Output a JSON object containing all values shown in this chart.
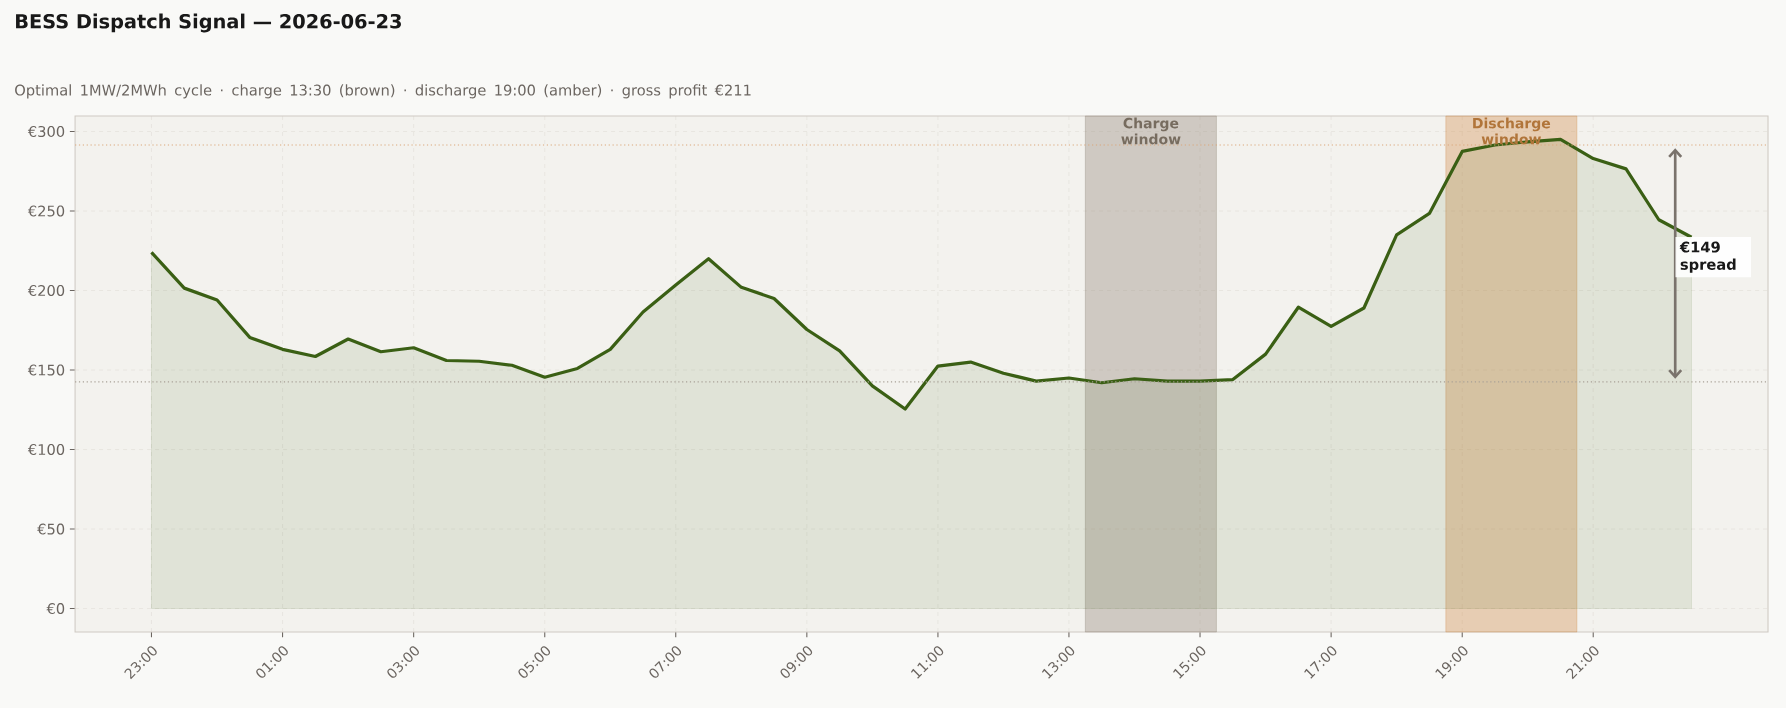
{
  "chart_data": {
    "type": "area",
    "title": "BESS Dispatch Signal — 2026-06-23",
    "subtitle": "Optimal 1MW/2MWh cycle  ·  charge 13:30 (brown)  ·  discharge 19:00 (amber)  ·  gross profit €211",
    "x": [
      "2026-06-22T23:00",
      "2026-06-22T23:30",
      "2026-06-23T00:00",
      "2026-06-23T00:30",
      "2026-06-23T01:00",
      "2026-06-23T01:30",
      "2026-06-23T02:00",
      "2026-06-23T02:30",
      "2026-06-23T03:00",
      "2026-06-23T03:30",
      "2026-06-23T04:00",
      "2026-06-23T04:30",
      "2026-06-23T05:00",
      "2026-06-23T05:30",
      "2026-06-23T06:00",
      "2026-06-23T06:30",
      "2026-06-23T07:00",
      "2026-06-23T07:30",
      "2026-06-23T08:00",
      "2026-06-23T08:30",
      "2026-06-23T09:00",
      "2026-06-23T09:30",
      "2026-06-23T10:00",
      "2026-06-23T10:30",
      "2026-06-23T11:00",
      "2026-06-23T11:30",
      "2026-06-23T12:00",
      "2026-06-23T12:30",
      "2026-06-23T13:00",
      "2026-06-23T13:30",
      "2026-06-23T14:00",
      "2026-06-23T14:30",
      "2026-06-23T15:00",
      "2026-06-23T15:30",
      "2026-06-23T16:00",
      "2026-06-23T16:30",
      "2026-06-23T17:00",
      "2026-06-23T17:30",
      "2026-06-23T18:00",
      "2026-06-23T18:30",
      "2026-06-23T19:00",
      "2026-06-23T19:30",
      "2026-06-23T20:00",
      "2026-06-23T20:30",
      "2026-06-23T21:00",
      "2026-06-23T21:30",
      "2026-06-23T22:00",
      "2026-06-23T22:30"
    ],
    "series": [
      {
        "color": "#3a5f14",
        "values": [
          224,
          201.5,
          194,
          170.5,
          163,
          158.5,
          169.5,
          161.5,
          164,
          156,
          155.5,
          153,
          145.5,
          151,
          163,
          186.5,
          203.5,
          220,
          202,
          195,
          175.5,
          162,
          140,
          125.5,
          152.5,
          155,
          148,
          143,
          145,
          142,
          144.5,
          143,
          143,
          144,
          160,
          189.5,
          177.5,
          189,
          235,
          248.5,
          287.5,
          291.5,
          293.5,
          295,
          283,
          276.5,
          244.5,
          233.5
        ]
      }
    ],
    "xlim": [
      "2026-06-22T21:50",
      "2026-06-23T23:40"
    ],
    "ylim": [
      -14.75,
      309.75
    ],
    "xticks": [
      {
        "value": "2026-06-22T23:00",
        "label": "23:00"
      },
      {
        "value": "2026-06-23T01:00",
        "label": "01:00"
      },
      {
        "value": "2026-06-23T03:00",
        "label": "03:00"
      },
      {
        "value": "2026-06-23T05:00",
        "label": "05:00"
      },
      {
        "value": "2026-06-23T07:00",
        "label": "07:00"
      },
      {
        "value": "2026-06-23T09:00",
        "label": "09:00"
      },
      {
        "value": "2026-06-23T11:00",
        "label": "11:00"
      },
      {
        "value": "2026-06-23T13:00",
        "label": "13:00"
      },
      {
        "value": "2026-06-23T15:00",
        "label": "15:00"
      },
      {
        "value": "2026-06-23T17:00",
        "label": "17:00"
      },
      {
        "value": "2026-06-23T19:00",
        "label": "19:00"
      },
      {
        "value": "2026-06-23T21:00",
        "label": "21:00"
      }
    ],
    "yticks": [
      {
        "value": 0,
        "label": "€0"
      },
      {
        "value": 50,
        "label": "€50"
      },
      {
        "value": 100,
        "label": "€100"
      },
      {
        "value": 150,
        "label": "€150"
      },
      {
        "value": 200,
        "label": "€200"
      },
      {
        "value": 250,
        "label": "€250"
      },
      {
        "value": 300,
        "label": "€300"
      }
    ],
    "grid": true,
    "ref_lines": [
      {
        "axis": "y",
        "value": 142.5,
        "color": "#a8a096",
        "line_style": "dotted"
      },
      {
        "axis": "y",
        "value": 291.5,
        "color": "#dba77a",
        "line_style": "dotted"
      }
    ],
    "bands": [
      {
        "axis": "x",
        "from": "2026-06-23T13:15",
        "to": "2026-06-23T15:15",
        "label": "Charge window",
        "color": "#8c7f70"
      },
      {
        "axis": "x",
        "from": "2026-06-23T18:45",
        "to": "2026-06-23T20:45",
        "label": "Discharge window",
        "color": "#d08a44"
      }
    ],
    "annotations": [
      "€149 spread"
    ]
  }
}
